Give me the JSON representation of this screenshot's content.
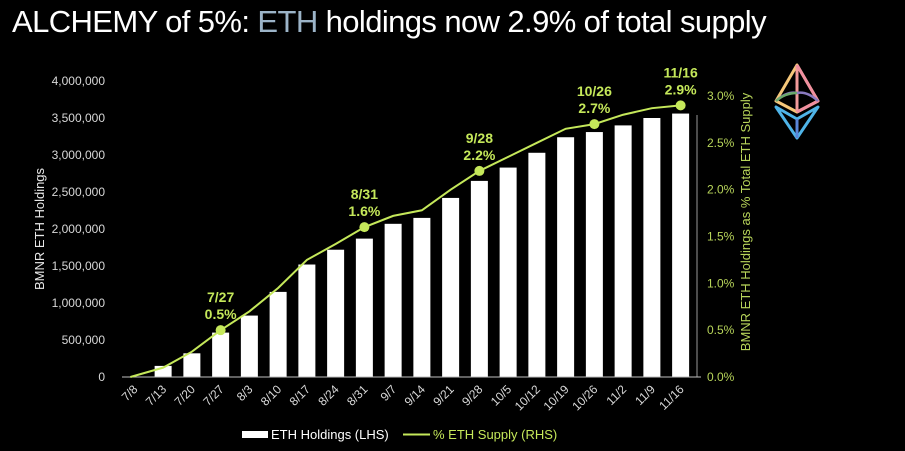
{
  "title": {
    "prefix": "ALCHEMY of 5%: ",
    "highlight": "ETH",
    "suffix": " holdings now 2.9% of total supply"
  },
  "colors": {
    "background": "#000000",
    "bars": "#ffffff",
    "line": "#c5e85a",
    "title_highlight": "#9cb4c8",
    "axis_text": "#d8d8d8"
  },
  "chart_data": {
    "type": "bar",
    "title": "ALCHEMY of 5%: ETH holdings now 2.9% of total supply",
    "categories": [
      "7/8",
      "7/13",
      "7/20",
      "7/27",
      "8/3",
      "8/10",
      "8/17",
      "8/24",
      "8/31",
      "9/7",
      "9/14",
      "9/21",
      "9/28",
      "10/5",
      "10/12",
      "10/19",
      "10/26",
      "11/2",
      "11/9",
      "11/16"
    ],
    "series": [
      {
        "name": "ETH Holdings (LHS)",
        "type": "bar",
        "axis": "left",
        "values": [
          0,
          150000,
          320000,
          600000,
          830000,
          1150000,
          1520000,
          1720000,
          1870000,
          2070000,
          2150000,
          2420000,
          2650000,
          2830000,
          3030000,
          3240000,
          3310000,
          3400000,
          3500000,
          3560000
        ]
      },
      {
        "name": "% ETH Supply (RHS)",
        "type": "line",
        "axis": "right",
        "values": [
          0.0,
          0.1,
          0.27,
          0.5,
          0.7,
          0.95,
          1.25,
          1.42,
          1.6,
          1.72,
          1.78,
          2.0,
          2.2,
          2.35,
          2.5,
          2.65,
          2.7,
          2.8,
          2.87,
          2.9
        ]
      }
    ],
    "annotations": [
      {
        "category": "7/27",
        "date": "7/27",
        "value": "0.5%"
      },
      {
        "category": "8/31",
        "date": "8/31",
        "value": "1.6%"
      },
      {
        "category": "9/28",
        "date": "9/28",
        "value": "2.2%"
      },
      {
        "category": "10/26",
        "date": "10/26",
        "value": "2.7%"
      },
      {
        "category": "11/16",
        "date": "11/16",
        "value": "2.9%"
      }
    ],
    "xlabel": "",
    "ylabel": "BMNR ETH Holdings",
    "y2label": "BMNR ETH Holdings as % Total ETH Supply",
    "ylim": [
      0,
      4000000
    ],
    "y2lim": [
      0,
      3.0
    ],
    "yticks": [
      "0",
      "500,000",
      "1,000,000",
      "1,500,000",
      "2,000,000",
      "2,500,000",
      "3,000,000",
      "3,500,000",
      "4,000,000"
    ],
    "y2ticks": [
      "0.0%",
      "0.5%",
      "1.0%",
      "1.5%",
      "2.0%",
      "2.5%",
      "3.0%"
    ],
    "grid": false,
    "legend_position": "bottom"
  },
  "legend": {
    "bars_label": "ETH Holdings (LHS)",
    "line_label": "% ETH Supply (RHS)"
  },
  "logo": {
    "icon": "ethereum-icon"
  }
}
